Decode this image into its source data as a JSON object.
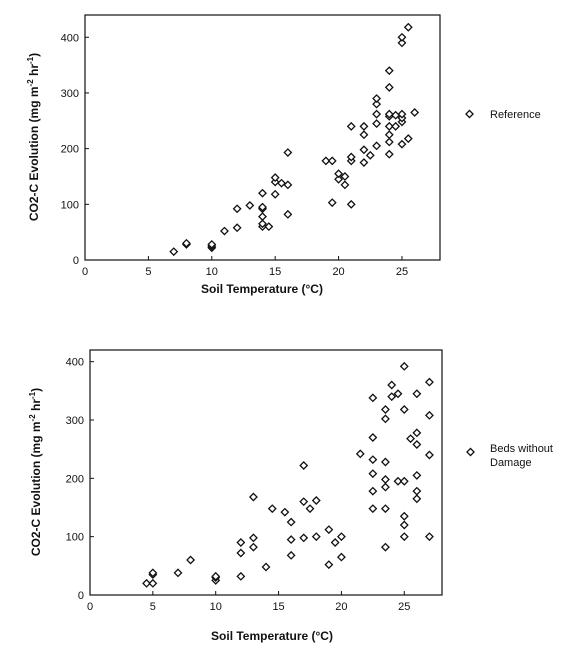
{
  "chart_data": [
    {
      "type": "scatter",
      "xlabel": "Soil Temperature (°C)",
      "ylabel_main": "CO2-C Evolution (mg m",
      "ylabel_sup1": "-2",
      "ylabel_mid": " hr",
      "ylabel_sup2": "-1",
      "ylabel_end": ")",
      "xlim": [
        0,
        28
      ],
      "ylim": [
        0,
        440
      ],
      "xticks": [
        0,
        5,
        10,
        15,
        20,
        25
      ],
      "yticks": [
        0,
        100,
        200,
        300,
        400
      ],
      "legend": [
        "Reference"
      ],
      "points": [
        [
          7,
          15
        ],
        [
          8,
          28
        ],
        [
          8,
          30
        ],
        [
          10,
          22
        ],
        [
          10,
          25
        ],
        [
          10,
          28
        ],
        [
          11,
          52
        ],
        [
          12,
          58
        ],
        [
          12,
          92
        ],
        [
          13,
          98
        ],
        [
          14,
          60
        ],
        [
          14,
          65
        ],
        [
          14,
          78
        ],
        [
          14,
          92
        ],
        [
          14,
          95
        ],
        [
          14,
          120
        ],
        [
          14.5,
          60
        ],
        [
          15,
          140
        ],
        [
          15,
          148
        ],
        [
          15,
          118
        ],
        [
          15.5,
          138
        ],
        [
          16,
          82
        ],
        [
          16,
          135
        ],
        [
          16,
          193
        ],
        [
          19,
          178
        ],
        [
          19.5,
          103
        ],
        [
          19.5,
          178
        ],
        [
          20,
          145
        ],
        [
          20,
          155
        ],
        [
          20.5,
          150
        ],
        [
          20.5,
          135
        ],
        [
          21,
          100
        ],
        [
          21,
          178
        ],
        [
          21,
          185
        ],
        [
          21,
          240
        ],
        [
          22,
          175
        ],
        [
          22,
          198
        ],
        [
          22,
          225
        ],
        [
          22,
          240
        ],
        [
          22.5,
          188
        ],
        [
          23,
          205
        ],
        [
          23,
          245
        ],
        [
          23,
          262
        ],
        [
          23,
          280
        ],
        [
          23,
          290
        ],
        [
          24,
          190
        ],
        [
          24,
          212
        ],
        [
          24,
          225
        ],
        [
          24,
          240
        ],
        [
          24,
          258
        ],
        [
          24,
          262
        ],
        [
          24,
          310
        ],
        [
          24,
          340
        ],
        [
          24.5,
          240
        ],
        [
          24.5,
          260
        ],
        [
          25,
          208
        ],
        [
          25,
          248
        ],
        [
          25,
          255
        ],
        [
          25,
          262
        ],
        [
          25,
          390
        ],
        [
          25,
          400
        ],
        [
          25.5,
          218
        ],
        [
          25.5,
          418
        ],
        [
          26,
          265
        ]
      ]
    },
    {
      "type": "scatter",
      "xlabel": "Soil Temperature (°C)",
      "ylabel_main": "CO2-C Evolution (mg m",
      "ylabel_sup1": "-2",
      "ylabel_mid": " hr",
      "ylabel_sup2": "-1",
      "ylabel_end": ")",
      "xlim": [
        0,
        28
      ],
      "ylim": [
        0,
        420
      ],
      "xticks": [
        0,
        5,
        10,
        15,
        20,
        25
      ],
      "yticks": [
        0,
        100,
        200,
        300,
        400
      ],
      "legend": [
        "Beds without",
        "Damage"
      ],
      "points": [
        [
          4.5,
          20
        ],
        [
          5,
          20
        ],
        [
          5,
          35
        ],
        [
          5,
          38
        ],
        [
          7,
          38
        ],
        [
          8,
          60
        ],
        [
          10,
          25
        ],
        [
          10,
          30
        ],
        [
          10,
          32
        ],
        [
          12,
          32
        ],
        [
          12,
          72
        ],
        [
          12,
          90
        ],
        [
          13,
          82
        ],
        [
          13,
          98
        ],
        [
          13,
          168
        ],
        [
          14,
          48
        ],
        [
          14.5,
          148
        ],
        [
          15.5,
          142
        ],
        [
          16,
          68
        ],
        [
          16,
          95
        ],
        [
          16,
          125
        ],
        [
          17,
          98
        ],
        [
          17,
          160
        ],
        [
          17,
          222
        ],
        [
          17.5,
          148
        ],
        [
          18,
          100
        ],
        [
          18,
          162
        ],
        [
          19,
          52
        ],
        [
          19,
          112
        ],
        [
          19.5,
          90
        ],
        [
          20,
          65
        ],
        [
          20,
          100
        ],
        [
          21.5,
          242
        ],
        [
          22.5,
          148
        ],
        [
          22.5,
          178
        ],
        [
          22.5,
          208
        ],
        [
          22.5,
          232
        ],
        [
          22.5,
          270
        ],
        [
          22.5,
          338
        ],
        [
          23.5,
          82
        ],
        [
          23.5,
          148
        ],
        [
          23.5,
          185
        ],
        [
          23.5,
          198
        ],
        [
          23.5,
          228
        ],
        [
          23.5,
          302
        ],
        [
          23.5,
          318
        ],
        [
          24,
          340
        ],
        [
          24,
          360
        ],
        [
          24.5,
          195
        ],
        [
          24.5,
          345
        ],
        [
          25,
          100
        ],
        [
          25,
          120
        ],
        [
          25,
          135
        ],
        [
          25,
          195
        ],
        [
          25,
          318
        ],
        [
          25,
          392
        ],
        [
          25.5,
          268
        ],
        [
          26,
          165
        ],
        [
          26,
          178
        ],
        [
          26,
          205
        ],
        [
          26,
          258
        ],
        [
          26,
          278
        ],
        [
          26,
          345
        ],
        [
          27,
          100
        ],
        [
          27,
          240
        ],
        [
          27,
          308
        ],
        [
          27,
          365
        ]
      ]
    }
  ]
}
